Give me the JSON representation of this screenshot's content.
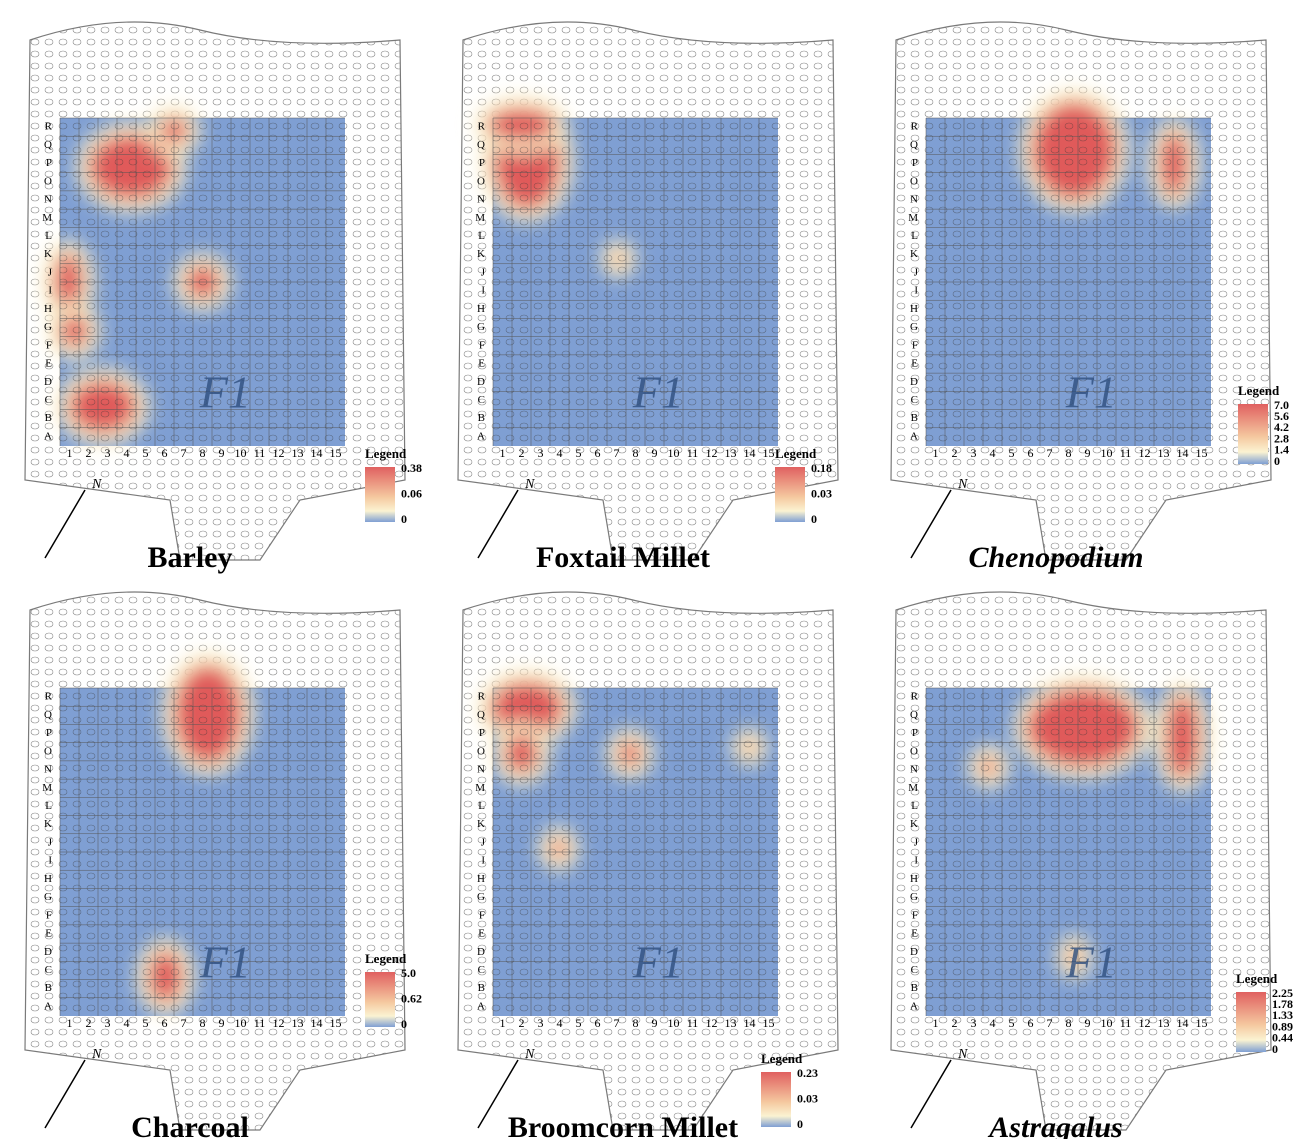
{
  "grid": {
    "rows": [
      "R",
      "Q",
      "P",
      "O",
      "N",
      "M",
      "L",
      "K",
      "J",
      "I",
      "H",
      "G",
      "F",
      "E",
      "D",
      "C",
      "B",
      "A"
    ],
    "columns": [
      "1",
      "2",
      "3",
      "4",
      "5",
      "6",
      "7",
      "8",
      "9",
      "10",
      "11",
      "12",
      "13",
      "14",
      "15"
    ],
    "structure_label": "F1",
    "north": "N"
  },
  "panels": [
    {
      "title": "Barley",
      "italic": false,
      "legend": {
        "title": "Legend",
        "labels": [
          "0.38",
          "0.06",
          "0"
        ]
      }
    },
    {
      "title": "Foxtail Millet",
      "italic": false,
      "legend": {
        "title": "Legend",
        "labels": [
          "0.18",
          "0.03",
          "0"
        ]
      }
    },
    {
      "title": "Chenopodium",
      "italic": true,
      "legend": {
        "title": "Legend",
        "labels": [
          "7.0",
          "5.6",
          "4.2",
          "2.8",
          "1.4",
          "0"
        ]
      }
    },
    {
      "title": "Charcoal",
      "italic": false,
      "legend": {
        "title": "Legend",
        "labels": [
          "5.0",
          "0.62",
          "0"
        ]
      }
    },
    {
      "title": "Broomcorn Millet",
      "italic": false,
      "legend": {
        "title": "Legend",
        "labels": [
          "0.23",
          "0.03",
          "0"
        ]
      }
    },
    {
      "title": "Astragalus",
      "italic": true,
      "legend": {
        "title": "Legend",
        "labels": [
          "2.25",
          "1.78",
          "1.33",
          "0.89",
          "0.44",
          "0"
        ]
      }
    }
  ]
}
